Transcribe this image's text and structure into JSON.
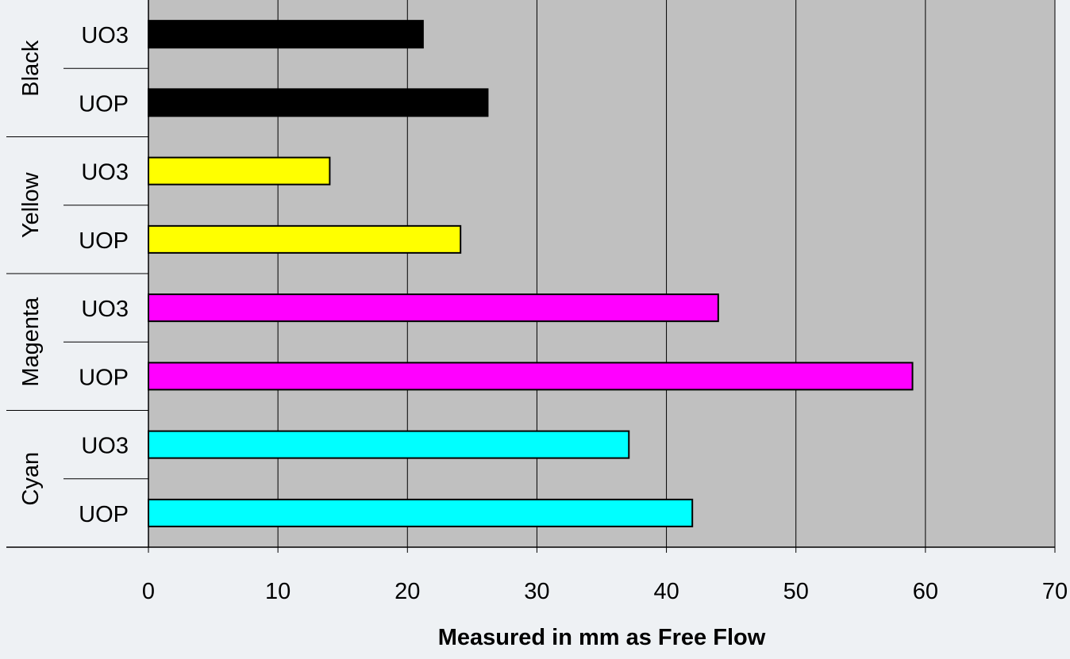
{
  "chart_data": {
    "type": "bar",
    "orientation": "horizontal",
    "title": "",
    "xlabel": "Measured in mm as Free Flow",
    "ylabel": "",
    "xlim": [
      0,
      70
    ],
    "xticks": [
      0,
      10,
      20,
      30,
      40,
      50,
      60,
      70
    ],
    "grid": true,
    "legend": "none",
    "plot_background": "#c0c0c0",
    "groups": [
      {
        "name": "Black",
        "color": "#000000",
        "bars": [
          {
            "label": "UO3",
            "value": 21.2
          },
          {
            "label": "UOP",
            "value": 26.2
          }
        ]
      },
      {
        "name": "Yellow",
        "color": "#ffff00",
        "bars": [
          {
            "label": "UO3",
            "value": 14.0
          },
          {
            "label": "UOP",
            "value": 24.1
          }
        ]
      },
      {
        "name": "Magenta",
        "color": "#ff00ff",
        "bars": [
          {
            "label": "UO3",
            "value": 44.0
          },
          {
            "label": "UOP",
            "value": 59.0
          }
        ]
      },
      {
        "name": "Cyan",
        "color": "#00ffff",
        "bars": [
          {
            "label": "UO3",
            "value": 37.1
          },
          {
            "label": "UOP",
            "value": 42.0
          }
        ]
      }
    ]
  }
}
